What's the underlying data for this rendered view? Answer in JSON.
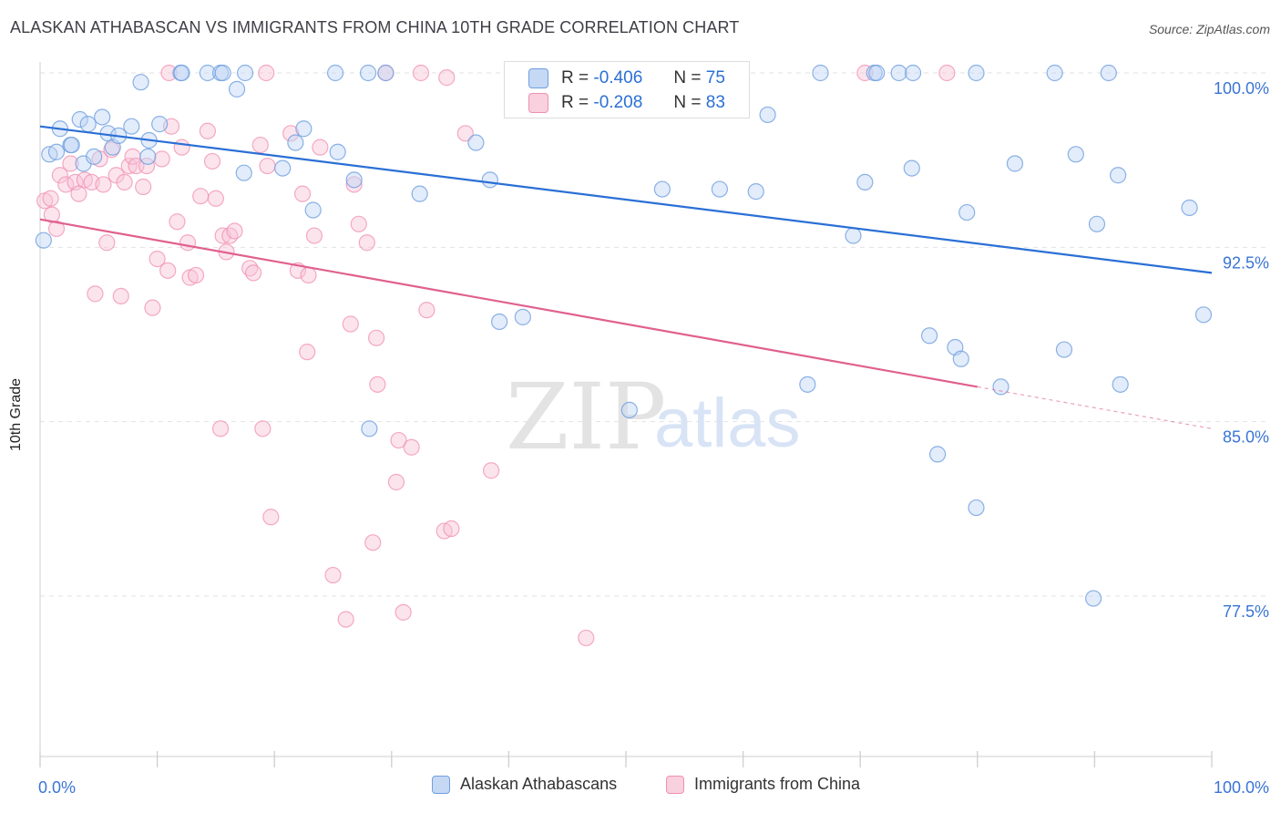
{
  "title": "ALASKAN ATHABASCAN VS IMMIGRANTS FROM CHINA 10TH GRADE CORRELATION CHART",
  "source": "Source: ZipAtlas.com",
  "watermark": {
    "zip": "ZIP",
    "atlas": "atlas"
  },
  "legend_inset": {
    "rows": [
      {
        "r_label": "R =",
        "r_value": "-0.406",
        "n_label": "N =",
        "n_value": "75"
      },
      {
        "r_label": "R =",
        "r_value": "-0.208",
        "n_label": "N =",
        "n_value": "83"
      }
    ]
  },
  "chart_data": {
    "type": "scatter",
    "title": "ALASKAN ATHABASCAN VS IMMIGRANTS FROM CHINA 10TH GRADE CORRELATION CHART",
    "xlabel": "",
    "ylabel": "10th Grade",
    "xlim": [
      0,
      100
    ],
    "ylim": [
      70.5,
      101.0
    ],
    "x_tick_labels": [
      "0.0%",
      "100.0%"
    ],
    "y_tick_labels": [
      "100.0%",
      "92.5%",
      "85.0%",
      "77.5%"
    ],
    "y_tick_values": [
      100.0,
      92.5,
      85.0,
      77.5
    ],
    "grid": true,
    "legend_position": "bottom",
    "colors": {
      "blue": "#6f9fe0",
      "pink": "#f08fb0",
      "blue_line": "#2a6fd6",
      "pink_line": "#e0608e"
    },
    "series": [
      {
        "name": "Alaskan Athabascans",
        "trend": {
          "x0": 0,
          "y0": 97.7,
          "x1": 100,
          "y1": 91.4
        },
        "points": [
          [
            0.3,
            92.8
          ],
          [
            0.8,
            96.5
          ],
          [
            1.4,
            96.6
          ],
          [
            1.7,
            97.6
          ],
          [
            2.6,
            96.9
          ],
          [
            2.7,
            96.9
          ],
          [
            3.4,
            98.0
          ],
          [
            3.7,
            96.1
          ],
          [
            4.1,
            97.8
          ],
          [
            4.6,
            96.4
          ],
          [
            5.3,
            98.1
          ],
          [
            5.8,
            97.4
          ],
          [
            6.2,
            96.8
          ],
          [
            6.7,
            97.3
          ],
          [
            7.8,
            97.7
          ],
          [
            8.6,
            99.6
          ],
          [
            9.2,
            96.4
          ],
          [
            9.3,
            97.1
          ],
          [
            10.2,
            97.8
          ],
          [
            12.0,
            100.0
          ],
          [
            12.1,
            100.0
          ],
          [
            14.3,
            100.0
          ],
          [
            15.4,
            100.0
          ],
          [
            15.6,
            100.0
          ],
          [
            16.8,
            99.3
          ],
          [
            17.4,
            95.7
          ],
          [
            17.5,
            100.0
          ],
          [
            20.7,
            95.9
          ],
          [
            21.8,
            97.0
          ],
          [
            22.5,
            97.6
          ],
          [
            23.3,
            94.1
          ],
          [
            25.2,
            100.0
          ],
          [
            25.4,
            96.6
          ],
          [
            26.8,
            95.4
          ],
          [
            28.1,
            84.7
          ],
          [
            29.5,
            100.0
          ],
          [
            32.4,
            94.8
          ],
          [
            37.2,
            97.0
          ],
          [
            38.4,
            95.4
          ],
          [
            39.2,
            89.3
          ],
          [
            41.2,
            89.5
          ],
          [
            50.3,
            85.5
          ],
          [
            53.1,
            95.0
          ],
          [
            58.0,
            95.0
          ],
          [
            61.1,
            94.9
          ],
          [
            62.1,
            98.2
          ],
          [
            65.5,
            86.6
          ],
          [
            66.6,
            100.0
          ],
          [
            69.4,
            93.0
          ],
          [
            70.4,
            95.3
          ],
          [
            71.2,
            100.0
          ],
          [
            71.4,
            100.0
          ],
          [
            73.3,
            100.0
          ],
          [
            74.4,
            95.9
          ],
          [
            74.5,
            100.0
          ],
          [
            75.9,
            88.7
          ],
          [
            76.6,
            83.6
          ],
          [
            78.1,
            88.2
          ],
          [
            78.6,
            87.7
          ],
          [
            79.1,
            94.0
          ],
          [
            79.9,
            81.3
          ],
          [
            79.9,
            100.0
          ],
          [
            82.0,
            86.5
          ],
          [
            83.2,
            96.1
          ],
          [
            86.6,
            100.0
          ],
          [
            87.4,
            88.1
          ],
          [
            88.4,
            96.5
          ],
          [
            89.9,
            77.4
          ],
          [
            90.2,
            93.5
          ],
          [
            91.2,
            100.0
          ],
          [
            92.0,
            95.6
          ],
          [
            92.2,
            86.6
          ],
          [
            98.1,
            94.2
          ],
          [
            99.3,
            89.6
          ],
          [
            28.0,
            100.0
          ]
        ]
      },
      {
        "name": "Immigrants from China",
        "trend": {
          "x0": 0,
          "y0": 93.7,
          "x1": 80,
          "y1": 86.5,
          "dash_to_x": 100,
          "dash_to_y": 84.7
        },
        "points": [
          [
            0.4,
            94.5
          ],
          [
            0.9,
            94.6
          ],
          [
            1.0,
            93.9
          ],
          [
            1.4,
            93.3
          ],
          [
            1.7,
            95.6
          ],
          [
            2.2,
            95.2
          ],
          [
            2.6,
            96.1
          ],
          [
            3.0,
            95.3
          ],
          [
            3.3,
            94.8
          ],
          [
            3.8,
            95.4
          ],
          [
            4.4,
            95.3
          ],
          [
            4.7,
            90.5
          ],
          [
            5.1,
            96.3
          ],
          [
            5.4,
            95.2
          ],
          [
            5.7,
            92.7
          ],
          [
            6.1,
            96.7
          ],
          [
            6.5,
            95.6
          ],
          [
            6.9,
            90.4
          ],
          [
            7.2,
            95.3
          ],
          [
            7.6,
            96.0
          ],
          [
            7.9,
            96.4
          ],
          [
            8.2,
            96.0
          ],
          [
            8.8,
            95.1
          ],
          [
            9.1,
            96.0
          ],
          [
            9.6,
            89.9
          ],
          [
            10.0,
            92.0
          ],
          [
            10.4,
            96.3
          ],
          [
            10.9,
            91.5
          ],
          [
            11.2,
            97.7
          ],
          [
            11.7,
            93.6
          ],
          [
            12.1,
            96.8
          ],
          [
            12.6,
            92.7
          ],
          [
            12.8,
            91.2
          ],
          [
            13.3,
            91.3
          ],
          [
            13.7,
            94.7
          ],
          [
            14.3,
            97.5
          ],
          [
            14.7,
            96.2
          ],
          [
            15.0,
            94.6
          ],
          [
            15.4,
            84.7
          ],
          [
            15.6,
            93.0
          ],
          [
            15.9,
            92.3
          ],
          [
            16.2,
            93.0
          ],
          [
            16.6,
            93.2
          ],
          [
            17.9,
            91.6
          ],
          [
            18.2,
            91.4
          ],
          [
            18.8,
            96.9
          ],
          [
            19.0,
            84.7
          ],
          [
            19.4,
            96.0
          ],
          [
            19.7,
            80.9
          ],
          [
            21.4,
            97.4
          ],
          [
            22.0,
            91.5
          ],
          [
            22.4,
            94.8
          ],
          [
            22.8,
            88.0
          ],
          [
            22.9,
            91.3
          ],
          [
            23.4,
            93.0
          ],
          [
            23.9,
            96.8
          ],
          [
            25.0,
            78.4
          ],
          [
            26.1,
            76.5
          ],
          [
            26.5,
            89.2
          ],
          [
            26.8,
            95.2
          ],
          [
            27.2,
            93.5
          ],
          [
            27.9,
            92.7
          ],
          [
            28.4,
            79.8
          ],
          [
            28.7,
            88.6
          ],
          [
            28.8,
            86.6
          ],
          [
            30.4,
            82.4
          ],
          [
            30.6,
            84.2
          ],
          [
            31.0,
            76.8
          ],
          [
            31.7,
            83.9
          ],
          [
            32.5,
            100.0
          ],
          [
            33.0,
            89.8
          ],
          [
            34.5,
            80.3
          ],
          [
            35.1,
            80.4
          ],
          [
            34.7,
            99.8
          ],
          [
            36.3,
            97.4
          ],
          [
            38.5,
            82.9
          ],
          [
            41.3,
            99.7
          ],
          [
            46.6,
            75.7
          ],
          [
            11.0,
            100.0
          ],
          [
            19.3,
            100.0
          ],
          [
            29.5,
            100.0
          ],
          [
            70.4,
            100.0
          ],
          [
            77.4,
            100.0
          ]
        ]
      }
    ]
  },
  "legend_bottom": [
    {
      "label": "Alaskan Athabascans"
    },
    {
      "label": "Immigrants from China"
    }
  ]
}
